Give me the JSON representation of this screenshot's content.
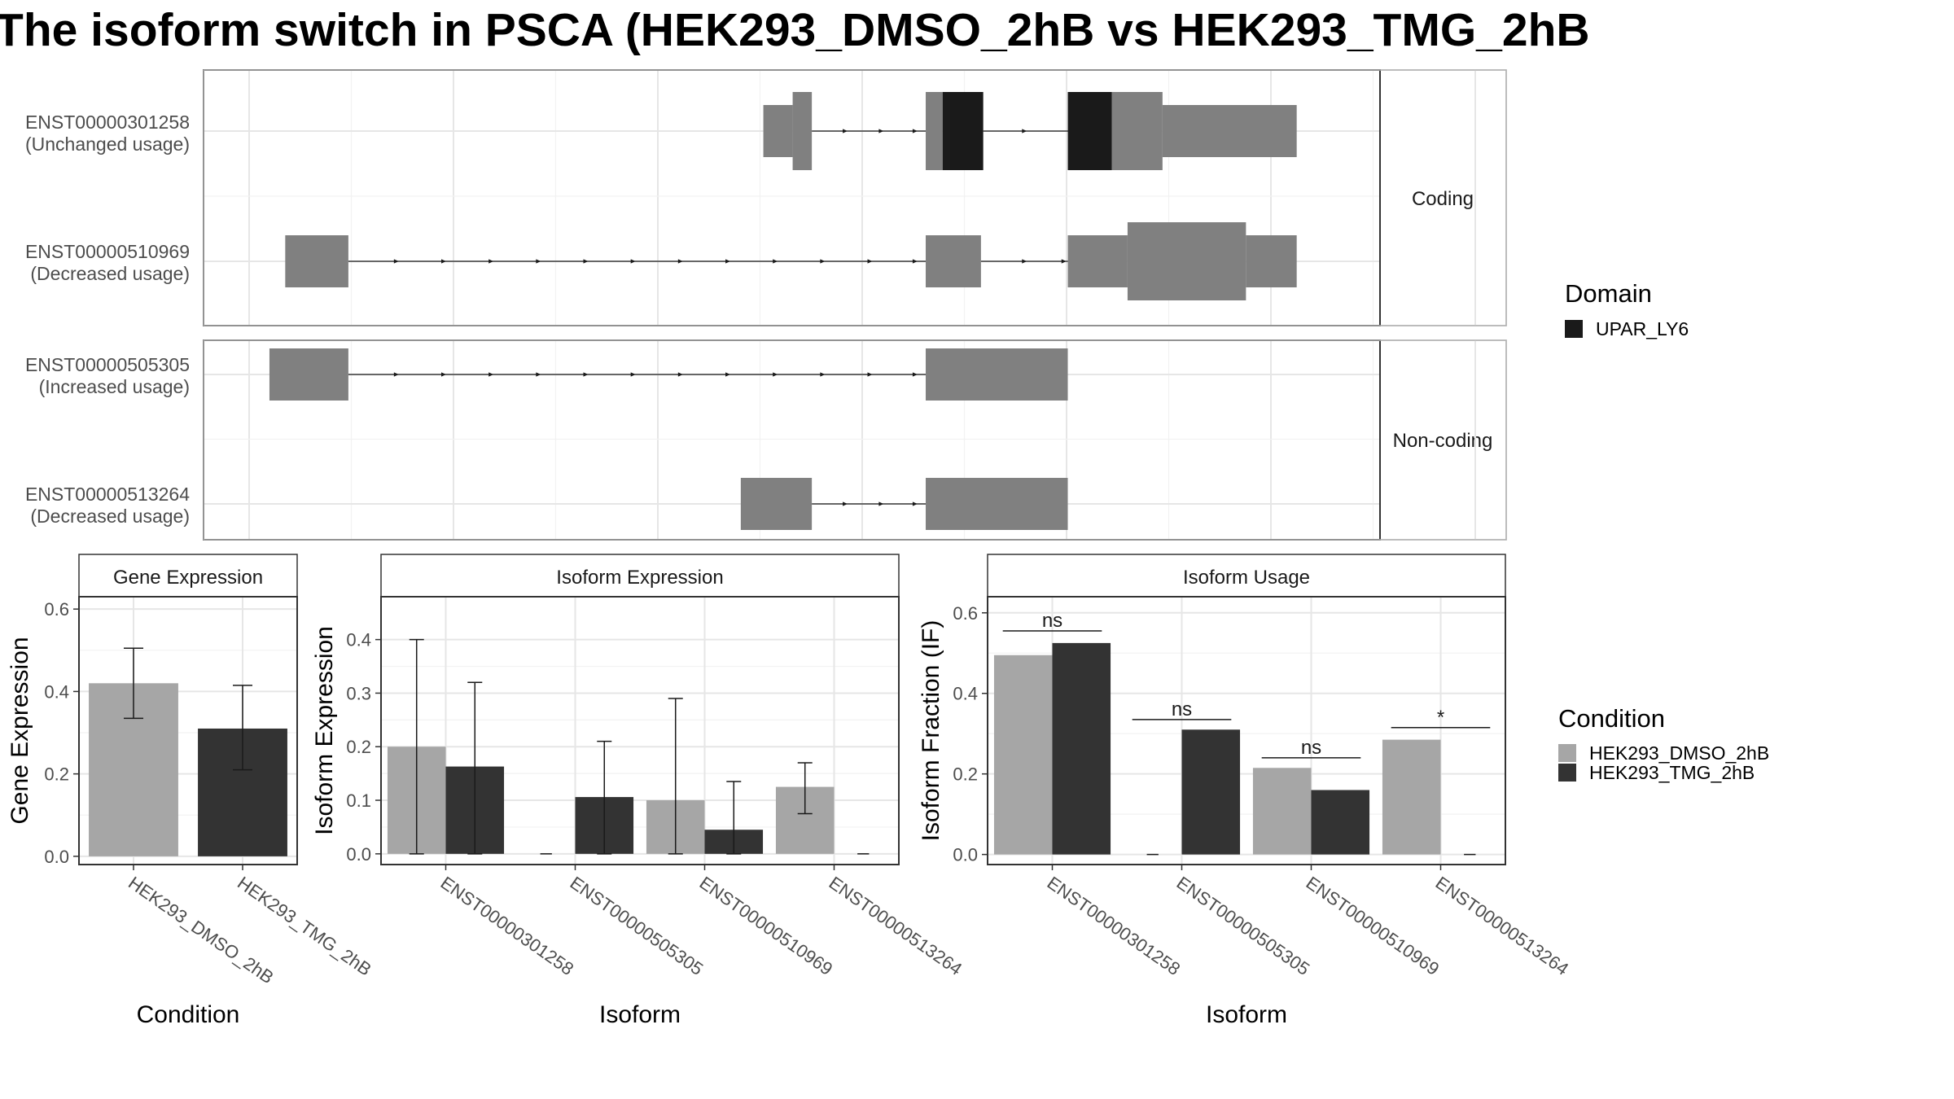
{
  "title": "The isoform switch in PSCA (HEK293_DMSO_2hB vs HEK293_TMG_2hB",
  "colors": {
    "exon": "#808080",
    "domain": "#1a1a1a",
    "condition_1": "#a6a6a6",
    "condition_2": "#333333"
  },
  "structure": {
    "genomic_range": [
      0,
      100
    ],
    "facets": [
      {
        "label": "Coding",
        "transcripts": [
          {
            "id": "ENST00000301258",
            "usage": "(Unchanged usage)",
            "exons": [
              {
                "start": 48.2,
                "end": 50.8,
                "height": "utr"
              },
              {
                "start": 50.8,
                "end": 52.5,
                "height": "cds"
              },
              {
                "start": 62.6,
                "end": 64.1,
                "height": "cds"
              },
              {
                "start": 64.1,
                "end": 67.7,
                "height": "cds",
                "domain": "UPAR_LY6"
              },
              {
                "start": 75.2,
                "end": 79.1,
                "height": "cds",
                "domain": "UPAR_LY6"
              },
              {
                "start": 79.1,
                "end": 83.6,
                "height": "cds"
              },
              {
                "start": 83.6,
                "end": 95.5,
                "height": "utr"
              }
            ],
            "introns": [
              [
                52.5,
                62.6
              ],
              [
                67.7,
                75.2
              ]
            ],
            "arrows": [
              55.6,
              58.8,
              61.8,
              71.5
            ]
          },
          {
            "id": "ENST00000510969",
            "usage": "(Decreased usage)",
            "exons": [
              {
                "start": 5.8,
                "end": 11.4,
                "height": "utr"
              },
              {
                "start": 62.6,
                "end": 67.5,
                "height": "utr"
              },
              {
                "start": 75.2,
                "end": 80.5,
                "height": "utr"
              },
              {
                "start": 80.5,
                "end": 91.0,
                "height": "cds"
              },
              {
                "start": 91.0,
                "end": 95.5,
                "height": "utr"
              }
            ],
            "introns": [
              [
                11.4,
                62.6
              ],
              [
                67.5,
                75.2
              ]
            ],
            "arrows": [
              15.8,
              20.0,
              24.2,
              28.4,
              32.6,
              36.8,
              41.0,
              45.2,
              49.4,
              53.6,
              57.8,
              61.8,
              71.5,
              75.0
            ]
          }
        ]
      },
      {
        "label": "Non-coding",
        "transcripts": [
          {
            "id": "ENST00000505305",
            "usage": "(Increased usage)",
            "exons": [
              {
                "start": 4.4,
                "end": 11.4,
                "height": "utr"
              },
              {
                "start": 62.6,
                "end": 75.2,
                "height": "utr"
              }
            ],
            "introns": [
              [
                11.4,
                62.6
              ]
            ],
            "arrows": [
              15.8,
              20.0,
              24.2,
              28.4,
              32.6,
              36.8,
              41.0,
              45.2,
              49.4,
              53.6,
              57.8,
              61.8
            ]
          },
          {
            "id": "ENST00000513264",
            "usage": "(Decreased usage)",
            "exons": [
              {
                "start": 46.2,
                "end": 52.5,
                "height": "utr"
              },
              {
                "start": 62.6,
                "end": 75.2,
                "height": "utr"
              }
            ],
            "introns": [
              [
                52.5,
                62.6
              ]
            ],
            "arrows": [
              55.6,
              58.8,
              61.8
            ]
          }
        ]
      }
    ]
  },
  "legend_domain": {
    "title": "Domain",
    "entries": [
      "UPAR_LY6"
    ]
  },
  "legend_condition": {
    "title": "Condition",
    "entries": [
      "HEK293_DMSO_2hB",
      "HEK293_TMG_2hB"
    ]
  },
  "chart_data": [
    {
      "type": "bar",
      "title": "Gene Expression",
      "xlabel": "Condition",
      "ylabel": "Gene Expression",
      "categories": [
        "HEK293_DMSO_2hB",
        "HEK293_TMG_2hB"
      ],
      "values": [
        0.42,
        0.31
      ],
      "errors": [
        [
          0.335,
          0.505
        ],
        [
          0.21,
          0.415
        ]
      ],
      "ylim": [
        -0.02,
        0.63
      ],
      "yticks": [
        0.0,
        0.2,
        0.4,
        0.6
      ],
      "tick_labels": [
        "0.0",
        "0.2",
        "0.4",
        "0.6"
      ]
    },
    {
      "type": "bar",
      "title": "Isoform Expression",
      "xlabel": "Isoform",
      "ylabel": "Isoform Expression",
      "categories": [
        "ENST00000301258",
        "ENST00000505305",
        "ENST00000510969",
        "ENST00000513264"
      ],
      "series": [
        {
          "name": "HEK293_DMSO_2hB",
          "values": [
            0.2,
            0.0,
            0.1,
            0.125
          ],
          "errors": [
            [
              0.0,
              0.4
            ],
            null,
            [
              0.0,
              0.29
            ],
            [
              0.075,
              0.17
            ]
          ]
        },
        {
          "name": "HEK293_TMG_2hB",
          "values": [
            0.163,
            0.106,
            0.045,
            0.0
          ],
          "errors": [
            [
              0.0,
              0.32
            ],
            [
              0.0,
              0.21
            ],
            [
              0.0,
              0.135
            ],
            null
          ]
        }
      ],
      "ylim": [
        -0.02,
        0.48
      ],
      "yticks": [
        0.0,
        0.1,
        0.2,
        0.3,
        0.4
      ],
      "tick_labels": [
        "0.0",
        "0.1",
        "0.2",
        "0.3",
        "0.4"
      ]
    },
    {
      "type": "bar",
      "title": "Isoform Usage",
      "xlabel": "Isoform",
      "ylabel": "Isoform Fraction (IF)",
      "categories": [
        "ENST00000301258",
        "ENST00000505305",
        "ENST00000510969",
        "ENST00000513264"
      ],
      "series": [
        {
          "name": "HEK293_DMSO_2hB",
          "values": [
            0.495,
            0.0,
            0.215,
            0.285
          ]
        },
        {
          "name": "HEK293_TMG_2hB",
          "values": [
            0.525,
            0.31,
            0.16,
            0.0
          ]
        }
      ],
      "significance": [
        {
          "label": "ns",
          "y": 0.555
        },
        {
          "label": "ns",
          "y": 0.335
        },
        {
          "label": "ns",
          "y": 0.24
        },
        {
          "label": "*",
          "y": 0.315
        }
      ],
      "ylim": [
        -0.025,
        0.64
      ],
      "yticks": [
        0.0,
        0.2,
        0.4,
        0.6
      ],
      "tick_labels": [
        "0.0",
        "0.2",
        "0.4",
        "0.6"
      ]
    }
  ]
}
